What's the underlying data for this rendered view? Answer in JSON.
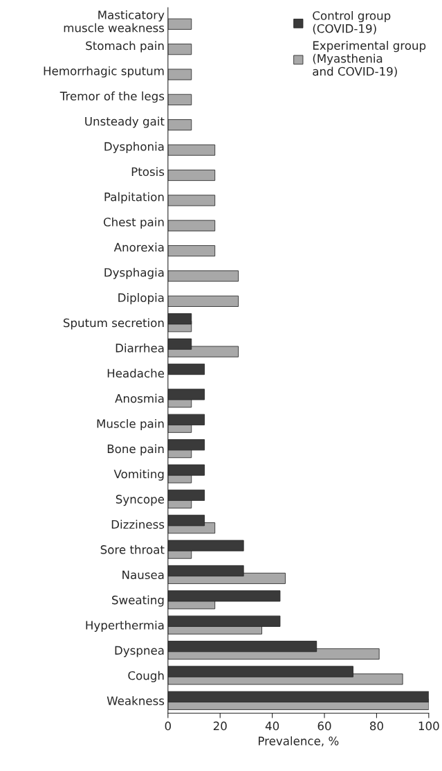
{
  "chart_data": {
    "type": "bar",
    "orientation": "horizontal",
    "xlabel": "Prevalence, %",
    "categories": [
      "Masticatory\nmuscle weakness",
      "Stomach pain",
      "Hemorrhagic sputum",
      "Tremor of the legs",
      "Unsteady gait",
      "Dysphonia",
      "Ptosis",
      "Palpitation",
      "Chest pain",
      "Anorexia",
      "Dysphagia",
      "Diplopia",
      "Sputum secretion",
      "Diarrhea",
      "Headache",
      "Anosmia",
      "Muscle pain",
      "Bone pain",
      "Vomiting",
      "Syncope",
      "Dizziness",
      "Sore throat",
      "Nausea",
      "Sweating",
      "Hyperthermia",
      "Dyspnea",
      "Cough",
      "Weakness"
    ],
    "series": [
      {
        "name": "Control group\n(COVID-19)",
        "color": "#3a3a3a",
        "values": [
          null,
          null,
          null,
          null,
          null,
          null,
          null,
          null,
          null,
          null,
          null,
          null,
          9,
          9,
          14,
          14,
          14,
          14,
          14,
          14,
          14,
          29,
          29,
          43,
          43,
          57,
          71,
          100
        ]
      },
      {
        "name": "Experimental group\n(Myasthenia\nand COVID-19)",
        "color": "#a8a8a8",
        "values": [
          9,
          9,
          9,
          9,
          9,
          18,
          18,
          18,
          18,
          18,
          27,
          27,
          9,
          27,
          null,
          9,
          9,
          9,
          9,
          9,
          18,
          9,
          45,
          18,
          36,
          81,
          90,
          100
        ]
      }
    ],
    "xlim": [
      0,
      100
    ],
    "xticks": [
      0,
      20,
      40,
      60,
      80,
      100
    ],
    "grid": false,
    "legend": "top right"
  }
}
